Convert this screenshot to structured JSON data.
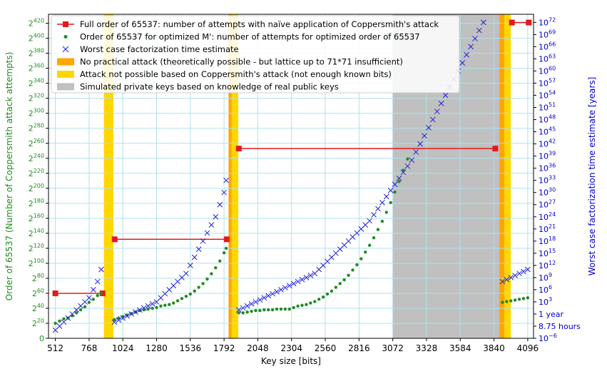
{
  "chart_data": {
    "type": "line",
    "xlabel": "Key size [bits]",
    "ylabel": "Order of 65537 (Number of Coppersmith attack attempts)",
    "ylabel_right": "Worst case factorization time estimate [years]",
    "xlim": [
      460,
      4140
    ],
    "ylim_log2": [
      0,
      432
    ],
    "ylim_right_log10": [
      -6,
      74
    ],
    "x_ticks": [
      "512",
      "768",
      "1024",
      "1280",
      "1536",
      "1792",
      "2048",
      "2304",
      "2560",
      "2816",
      "3072",
      "3328",
      "3584",
      "3840",
      "4096"
    ],
    "x_tick_values": [
      512,
      768,
      1024,
      1280,
      1536,
      1792,
      2048,
      2304,
      2560,
      2816,
      3072,
      3328,
      3584,
      3840,
      4096
    ],
    "y_ticks_left": [
      {
        "base": "0",
        "exp": ""
      },
      {
        "base": "2",
        "exp": "20"
      },
      {
        "base": "2",
        "exp": "40"
      },
      {
        "base": "2",
        "exp": "60"
      },
      {
        "base": "2",
        "exp": "80"
      },
      {
        "base": "2",
        "exp": "100"
      },
      {
        "base": "2",
        "exp": "120"
      },
      {
        "base": "2",
        "exp": "140"
      },
      {
        "base": "2",
        "exp": "160"
      },
      {
        "base": "2",
        "exp": "180"
      },
      {
        "base": "2",
        "exp": "200"
      },
      {
        "base": "2",
        "exp": "220"
      },
      {
        "base": "2",
        "exp": "240"
      },
      {
        "base": "2",
        "exp": "260"
      },
      {
        "base": "2",
        "exp": "280"
      },
      {
        "base": "2",
        "exp": "300"
      },
      {
        "base": "2",
        "exp": "320"
      },
      {
        "base": "2",
        "exp": "340"
      },
      {
        "base": "2",
        "exp": "360"
      },
      {
        "base": "2",
        "exp": "380"
      },
      {
        "base": "2",
        "exp": "400"
      },
      {
        "base": "2",
        "exp": "420"
      }
    ],
    "y_ticks_left_values": [
      0,
      20,
      40,
      60,
      80,
      100,
      120,
      140,
      160,
      180,
      200,
      220,
      240,
      260,
      280,
      300,
      320,
      340,
      360,
      380,
      400,
      420
    ],
    "y_ticks_right": [
      {
        "base": "10",
        "exp": "−6"
      },
      {
        "base": "8.75 hours",
        "exp": ""
      },
      {
        "base": "1 year",
        "exp": ""
      },
      {
        "base": "10",
        "exp": "3"
      },
      {
        "base": "10",
        "exp": "6"
      },
      {
        "base": "10",
        "exp": "9"
      },
      {
        "base": "10",
        "exp": "12"
      },
      {
        "base": "10",
        "exp": "15"
      },
      {
        "base": "10",
        "exp": "18"
      },
      {
        "base": "10",
        "exp": "21"
      },
      {
        "base": "10",
        "exp": "24"
      },
      {
        "base": "10",
        "exp": "27"
      },
      {
        "base": "10",
        "exp": "30"
      },
      {
        "base": "10",
        "exp": "33"
      },
      {
        "base": "10",
        "exp": "36"
      },
      {
        "base": "10",
        "exp": "39"
      },
      {
        "base": "10",
        "exp": "42"
      },
      {
        "base": "10",
        "exp": "45"
      },
      {
        "base": "10",
        "exp": "48"
      },
      {
        "base": "10",
        "exp": "51"
      },
      {
        "base": "10",
        "exp": "54"
      },
      {
        "base": "10",
        "exp": "57"
      },
      {
        "base": "10",
        "exp": "60"
      },
      {
        "base": "10",
        "exp": "63"
      },
      {
        "base": "10",
        "exp": "66"
      },
      {
        "base": "10",
        "exp": "69"
      },
      {
        "base": "10",
        "exp": "72"
      }
    ],
    "y_ticks_right_values": [
      -6,
      -3,
      0,
      3,
      6,
      9,
      12,
      15,
      18,
      21,
      24,
      27,
      30,
      33,
      36,
      39,
      42,
      45,
      48,
      51,
      54,
      57,
      60,
      63,
      66,
      69,
      72
    ],
    "regions": [
      {
        "kind": "yellow",
        "x0": 880,
        "x1": 952
      },
      {
        "kind": "orange",
        "x0": 1826,
        "x1": 1850
      },
      {
        "kind": "yellow",
        "x0": 1850,
        "x1": 1900
      },
      {
        "kind": "gray",
        "x0": 3072,
        "x1": 3880
      },
      {
        "kind": "orange",
        "x0": 3880,
        "x1": 3920
      },
      {
        "kind": "yellow",
        "x0": 3920,
        "x1": 3968
      }
    ],
    "colors": {
      "red": "#e31a1c",
      "green": "#228b22",
      "blue": "#1f1fd6",
      "yellow": "#ffd700",
      "orange": "#ffa500",
      "gray": "#c0c0c0",
      "grid": "#b0e0ec"
    },
    "series": [
      {
        "name": "Full order of 65537: number of attempts with naïve application of Coppersmith's attack",
        "marker": "square-line",
        "segments": [
          {
            "x": [
              512,
              870
            ],
            "y": [
              60,
              60
            ]
          },
          {
            "x": [
              962,
              1812
            ],
            "y": [
              132,
              132
            ]
          },
          {
            "x": [
              1904,
              3850
            ],
            "y": [
              253,
              253
            ]
          },
          {
            "x": [
              3976,
              4104
            ],
            "y": [
              421,
              421
            ]
          }
        ]
      },
      {
        "name": "Order of 65537 for optimized M': number of attempts for optimized order of 65537",
        "marker": "dot",
        "points": [
          [
            512,
            20
          ],
          [
            544,
            23
          ],
          [
            576,
            26
          ],
          [
            608,
            27
          ],
          [
            640,
            30
          ],
          [
            672,
            34
          ],
          [
            704,
            38
          ],
          [
            736,
            42
          ],
          [
            768,
            48
          ],
          [
            800,
            52
          ],
          [
            832,
            57
          ],
          [
            860,
            60
          ],
          [
            960,
            25
          ],
          [
            992,
            27
          ],
          [
            1024,
            29
          ],
          [
            1056,
            31
          ],
          [
            1088,
            33
          ],
          [
            1120,
            35
          ],
          [
            1152,
            37
          ],
          [
            1184,
            38
          ],
          [
            1216,
            39
          ],
          [
            1248,
            40
          ],
          [
            1280,
            41
          ],
          [
            1312,
            43
          ],
          [
            1344,
            44
          ],
          [
            1376,
            45
          ],
          [
            1408,
            47
          ],
          [
            1440,
            50
          ],
          [
            1472,
            53
          ],
          [
            1504,
            56
          ],
          [
            1536,
            59
          ],
          [
            1568,
            63
          ],
          [
            1600,
            68
          ],
          [
            1632,
            73
          ],
          [
            1664,
            79
          ],
          [
            1696,
            86
          ],
          [
            1728,
            94
          ],
          [
            1760,
            103
          ],
          [
            1792,
            114
          ],
          [
            1808,
            120
          ],
          [
            1904,
            34
          ],
          [
            1936,
            34
          ],
          [
            1968,
            35
          ],
          [
            2000,
            36
          ],
          [
            2032,
            37
          ],
          [
            2064,
            37
          ],
          [
            2096,
            38
          ],
          [
            2128,
            38
          ],
          [
            2160,
            38
          ],
          [
            2192,
            39
          ],
          [
            2224,
            39
          ],
          [
            2256,
            39
          ],
          [
            2288,
            39
          ],
          [
            2320,
            41
          ],
          [
            2352,
            43
          ],
          [
            2384,
            44
          ],
          [
            2416,
            45
          ],
          [
            2448,
            47
          ],
          [
            2480,
            49
          ],
          [
            2512,
            52
          ],
          [
            2544,
            55
          ],
          [
            2576,
            59
          ],
          [
            2608,
            63
          ],
          [
            2640,
            68
          ],
          [
            2672,
            73
          ],
          [
            2704,
            78
          ],
          [
            2736,
            84
          ],
          [
            2768,
            91
          ],
          [
            2800,
            98
          ],
          [
            2832,
            106
          ],
          [
            2864,
            115
          ],
          [
            2896,
            124
          ],
          [
            2928,
            134
          ],
          [
            2960,
            145
          ],
          [
            2992,
            156
          ],
          [
            3024,
            168
          ],
          [
            3056,
            181
          ],
          [
            3088,
            195
          ],
          [
            3120,
            209
          ],
          [
            3152,
            224
          ],
          [
            3184,
            239
          ],
          [
            3904,
            48
          ],
          [
            3936,
            49
          ],
          [
            3968,
            50
          ],
          [
            4000,
            51
          ],
          [
            4032,
            52
          ],
          [
            4064,
            53
          ],
          [
            4096,
            54
          ]
        ]
      },
      {
        "name": "Worst case factorization time estimate",
        "marker": "x",
        "points": [
          [
            512,
            -4
          ],
          [
            544,
            -3
          ],
          [
            576,
            -2
          ],
          [
            608,
            -1
          ],
          [
            640,
            0
          ],
          [
            672,
            1
          ],
          [
            704,
            2
          ],
          [
            736,
            3
          ],
          [
            768,
            4
          ],
          [
            800,
            6
          ],
          [
            832,
            8
          ],
          [
            860,
            11
          ],
          [
            960,
            -2
          ],
          [
            992,
            -1.5
          ],
          [
            1024,
            -1
          ],
          [
            1056,
            -0.5
          ],
          [
            1088,
            0
          ],
          [
            1120,
            0.5
          ],
          [
            1152,
            1
          ],
          [
            1184,
            1.5
          ],
          [
            1216,
            2
          ],
          [
            1248,
            2.5
          ],
          [
            1280,
            3
          ],
          [
            1312,
            4
          ],
          [
            1344,
            5
          ],
          [
            1376,
            6
          ],
          [
            1408,
            7
          ],
          [
            1440,
            8
          ],
          [
            1472,
            9
          ],
          [
            1504,
            10
          ],
          [
            1536,
            12
          ],
          [
            1568,
            14
          ],
          [
            1600,
            16
          ],
          [
            1632,
            18
          ],
          [
            1664,
            20
          ],
          [
            1696,
            22
          ],
          [
            1728,
            24
          ],
          [
            1760,
            27
          ],
          [
            1792,
            30
          ],
          [
            1808,
            33
          ],
          [
            1904,
            1
          ],
          [
            1936,
            1.5
          ],
          [
            1968,
            2
          ],
          [
            2000,
            2.5
          ],
          [
            2032,
            3
          ],
          [
            2064,
            3.5
          ],
          [
            2096,
            4
          ],
          [
            2128,
            4.5
          ],
          [
            2160,
            5
          ],
          [
            2192,
            5.5
          ],
          [
            2224,
            6
          ],
          [
            2256,
            6.5
          ],
          [
            2288,
            7
          ],
          [
            2320,
            7.5
          ],
          [
            2352,
            8
          ],
          [
            2384,
            8.5
          ],
          [
            2416,
            9
          ],
          [
            2448,
            9.5
          ],
          [
            2480,
            10
          ],
          [
            2512,
            11
          ],
          [
            2544,
            12
          ],
          [
            2576,
            13
          ],
          [
            2608,
            14
          ],
          [
            2640,
            15
          ],
          [
            2672,
            16
          ],
          [
            2704,
            17
          ],
          [
            2736,
            18
          ],
          [
            2768,
            19
          ],
          [
            2800,
            20
          ],
          [
            2832,
            21
          ],
          [
            2864,
            22
          ],
          [
            2896,
            23
          ],
          [
            2928,
            24.5
          ],
          [
            2960,
            26
          ],
          [
            2992,
            27.5
          ],
          [
            3024,
            29
          ],
          [
            3056,
            30.5
          ],
          [
            3088,
            32
          ],
          [
            3120,
            33.5
          ],
          [
            3152,
            35
          ],
          [
            3184,
            36.5
          ],
          [
            3216,
            38
          ],
          [
            3248,
            40
          ],
          [
            3280,
            42
          ],
          [
            3312,
            44
          ],
          [
            3344,
            46
          ],
          [
            3376,
            48
          ],
          [
            3408,
            50
          ],
          [
            3440,
            52
          ],
          [
            3472,
            54
          ],
          [
            3504,
            56
          ],
          [
            3536,
            58
          ],
          [
            3568,
            60
          ],
          [
            3600,
            62
          ],
          [
            3632,
            64
          ],
          [
            3664,
            66
          ],
          [
            3696,
            68
          ],
          [
            3728,
            70
          ],
          [
            3760,
            72
          ],
          [
            3904,
            8
          ],
          [
            3936,
            8.5
          ],
          [
            3968,
            9
          ],
          [
            4000,
            9.5
          ],
          [
            4032,
            10
          ],
          [
            4064,
            10.5
          ],
          [
            4096,
            11
          ]
        ]
      }
    ],
    "legend": [
      {
        "marker": "red-square-line",
        "label": "Full order of 65537: number of attempts with naïve application of Coppersmith's attack"
      },
      {
        "marker": "green-dot",
        "label": "Order of 65537 for optimized M': number of attempts for optimized order of 65537"
      },
      {
        "marker": "blue-x",
        "label": "Worst case factorization time estimate"
      },
      {
        "marker": "orange-patch",
        "label": "No practical attack (theoretically possible - but lattice up to 71*71 insufficient)"
      },
      {
        "marker": "yellow-patch",
        "label": "Attack not possible based on Coppersmith's attack (not enough known bits)"
      },
      {
        "marker": "gray-patch",
        "label": "Simulated private keys based on knowledge of real public keys"
      }
    ]
  }
}
